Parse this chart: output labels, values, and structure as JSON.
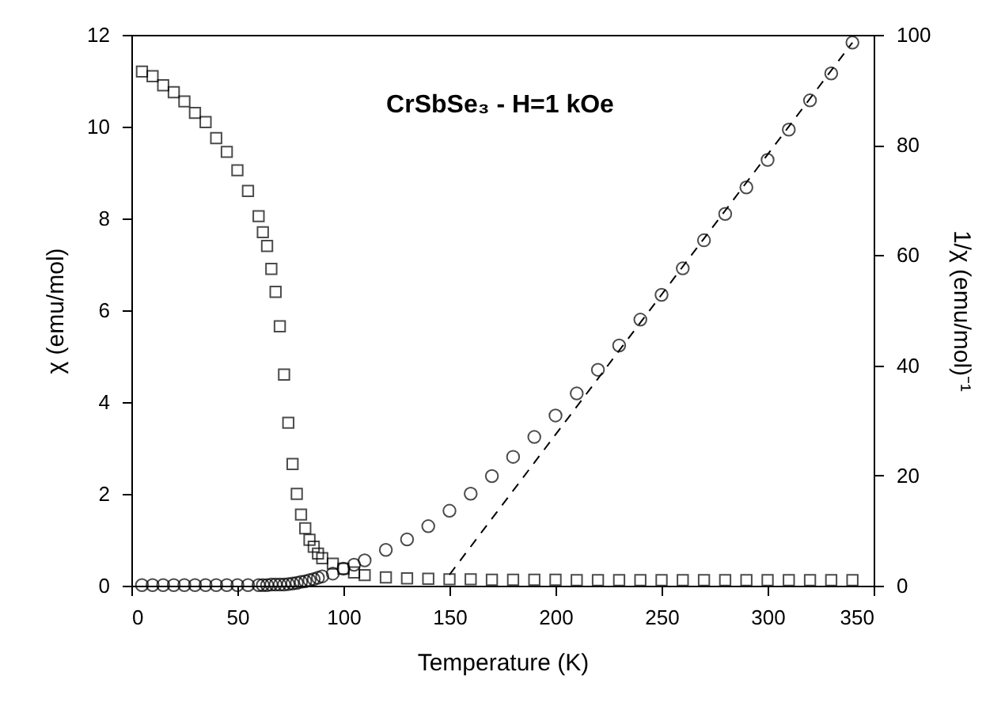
{
  "chart_data": {
    "type": "scatter",
    "annotations": [
      "CrSbSe₃ - H=1 kOe"
    ],
    "xlabel": "Temperature  (K)",
    "ylabel": "χ  (emu/mol)",
    "y2label": "1/χ  (emu/mol)⁻¹",
    "xlim": [
      0,
      350
    ],
    "xticks": [
      0,
      50,
      100,
      150,
      200,
      250,
      300,
      350
    ],
    "ylim": [
      0,
      12
    ],
    "yticks": [
      0,
      2,
      4,
      6,
      8,
      10,
      12
    ],
    "y2lim": [
      0,
      100
    ],
    "y2ticks": [
      0,
      20,
      40,
      60,
      80,
      100
    ],
    "grid": false,
    "series": [
      {
        "marker": "square",
        "color": "#000000",
        "x": [
          5,
          10,
          15,
          20,
          25,
          30,
          35,
          40,
          45,
          50,
          55,
          60,
          62,
          64,
          66,
          68,
          70,
          72,
          74,
          76,
          78,
          80,
          82,
          84,
          86,
          88,
          90,
          95,
          100,
          105,
          110,
          120,
          130,
          140,
          150,
          160,
          170,
          180,
          190,
          200,
          210,
          220,
          230,
          240,
          250,
          260,
          270,
          280,
          290,
          300,
          310,
          320,
          330,
          340
        ],
        "values": [
          11.2,
          11.1,
          10.9,
          10.75,
          10.55,
          10.3,
          10.1,
          9.75,
          9.45,
          9.05,
          8.6,
          8.05,
          7.7,
          7.4,
          6.9,
          6.4,
          5.65,
          4.6,
          3.55,
          2.65,
          2.0,
          1.55,
          1.25,
          1.0,
          0.85,
          0.7,
          0.6,
          0.48,
          0.37,
          0.29,
          0.23,
          0.18,
          0.16,
          0.15,
          0.14,
          0.14,
          0.13,
          0.13,
          0.13,
          0.13,
          0.12,
          0.12,
          0.12,
          0.12,
          0.12,
          0.12,
          0.12,
          0.12,
          0.12,
          0.12,
          0.12,
          0.12,
          0.12,
          0.12
        ]
      },
      {
        "marker": "circle",
        "color": "#000000",
        "axis": "y2",
        "x": [
          5,
          10,
          15,
          20,
          25,
          30,
          35,
          40,
          45,
          50,
          55,
          60,
          62,
          64,
          66,
          68,
          70,
          72,
          74,
          76,
          78,
          80,
          82,
          84,
          86,
          88,
          90,
          95,
          100,
          105,
          110,
          120,
          130,
          140,
          150,
          160,
          170,
          180,
          190,
          200,
          210,
          220,
          230,
          240,
          250,
          260,
          270,
          280,
          290,
          300,
          310,
          320,
          330,
          340
        ],
        "values": [
          0.1,
          0.1,
          0.1,
          0.1,
          0.1,
          0.1,
          0.1,
          0.1,
          0.1,
          0.1,
          0.1,
          0.1,
          0.1,
          0.1,
          0.2,
          0.2,
          0.2,
          0.2,
          0.3,
          0.4,
          0.5,
          0.7,
          0.8,
          1.0,
          1.2,
          1.45,
          1.7,
          2.2,
          3.1,
          3.8,
          4.6,
          6.5,
          8.4,
          10.8,
          13.6,
          16.7,
          19.9,
          23.4,
          27,
          30.9,
          34.9,
          39.2,
          43.6,
          48.3,
          52.8,
          57.6,
          62.7,
          67.5,
          72.3,
          77.3,
          82.8,
          88.1,
          93,
          98.6
        ]
      },
      {
        "type": "line",
        "line_style": "dashed",
        "color": "#000000",
        "axis": "y2",
        "x": [
          150,
          340
        ],
        "values": [
          2,
          98.6
        ]
      }
    ]
  }
}
